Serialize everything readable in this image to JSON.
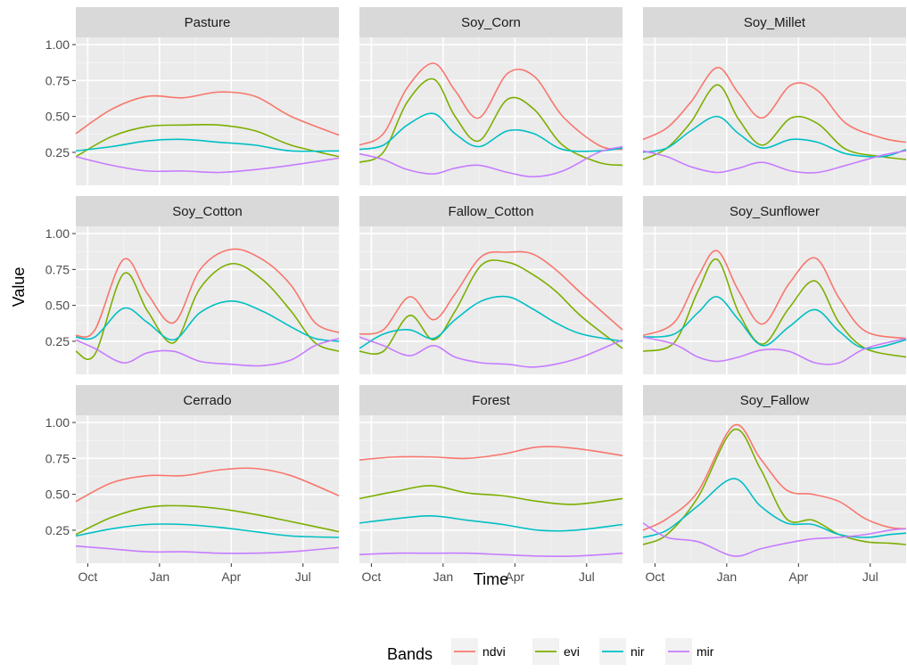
{
  "chart_data": {
    "type": "line",
    "xlabel": "Time",
    "ylabel": "Value",
    "legend": {
      "title": "Bands",
      "position": "bottom"
    },
    "x_ticks": [
      "Oct",
      "Jan",
      "Apr",
      "Jul"
    ],
    "x_tick_positions": [
      1,
      4,
      7,
      10
    ],
    "xlim": [
      0.5,
      11.5
    ],
    "y_ticks": [
      "0.25",
      "0.50",
      "0.75",
      "1.00"
    ],
    "y_tick_values": [
      0.25,
      0.5,
      0.75,
      1.0
    ],
    "ylim": [
      0.02,
      1.05
    ],
    "grid": true,
    "x_unit": "months since September",
    "series_styles": [
      {
        "name": "ndvi",
        "color": "#F8766D"
      },
      {
        "name": "evi",
        "color": "#7CAE00"
      },
      {
        "name": "nir",
        "color": "#00BFC4"
      },
      {
        "name": "mir",
        "color": "#C77CFF"
      }
    ],
    "facets": [
      {
        "title": "Pasture",
        "x": [
          0.5,
          2,
          3.5,
          5,
          6.5,
          8,
          9.5,
          11.5
        ],
        "series": [
          {
            "name": "ndvi",
            "values": [
              0.38,
              0.55,
              0.64,
              0.63,
              0.67,
              0.64,
              0.5,
              0.37
            ]
          },
          {
            "name": "evi",
            "values": [
              0.22,
              0.36,
              0.43,
              0.44,
              0.44,
              0.4,
              0.3,
              0.22
            ]
          },
          {
            "name": "nir",
            "values": [
              0.26,
              0.29,
              0.33,
              0.34,
              0.32,
              0.3,
              0.26,
              0.26
            ]
          },
          {
            "name": "mir",
            "values": [
              0.22,
              0.16,
              0.12,
              0.12,
              0.11,
              0.13,
              0.16,
              0.21
            ]
          }
        ]
      },
      {
        "title": "Soy_Corn",
        "x": [
          0.5,
          1.5,
          2.5,
          3.6,
          4.5,
          5.5,
          6.7,
          7.8,
          9,
          10.5,
          11.5
        ],
        "series": [
          {
            "name": "ndvi",
            "values": [
              0.3,
              0.38,
              0.7,
              0.87,
              0.68,
              0.49,
              0.8,
              0.78,
              0.5,
              0.3,
              0.27
            ]
          },
          {
            "name": "evi",
            "values": [
              0.18,
              0.25,
              0.6,
              0.76,
              0.5,
              0.33,
              0.62,
              0.55,
              0.3,
              0.18,
              0.16
            ]
          },
          {
            "name": "nir",
            "values": [
              0.27,
              0.3,
              0.44,
              0.52,
              0.38,
              0.29,
              0.4,
              0.38,
              0.27,
              0.26,
              0.28
            ]
          },
          {
            "name": "mir",
            "values": [
              0.24,
              0.2,
              0.13,
              0.1,
              0.14,
              0.16,
              0.11,
              0.08,
              0.12,
              0.25,
              0.29
            ]
          }
        ]
      },
      {
        "title": "Soy_Millet",
        "x": [
          0.5,
          1.5,
          2.5,
          3.6,
          4.5,
          5.5,
          6.7,
          7.8,
          9,
          10.5,
          11.5
        ],
        "series": [
          {
            "name": "ndvi",
            "values": [
              0.34,
              0.42,
              0.6,
              0.84,
              0.66,
              0.49,
              0.72,
              0.68,
              0.45,
              0.35,
              0.32
            ]
          },
          {
            "name": "evi",
            "values": [
              0.2,
              0.28,
              0.46,
              0.72,
              0.48,
              0.3,
              0.49,
              0.45,
              0.27,
              0.22,
              0.2
            ]
          },
          {
            "name": "nir",
            "values": [
              0.25,
              0.28,
              0.4,
              0.5,
              0.38,
              0.28,
              0.34,
              0.32,
              0.24,
              0.22,
              0.27
            ]
          },
          {
            "name": "mir",
            "values": [
              0.26,
              0.22,
              0.15,
              0.11,
              0.14,
              0.18,
              0.12,
              0.11,
              0.16,
              0.23,
              0.26
            ]
          }
        ]
      },
      {
        "title": "Soy_Cotton",
        "x": [
          0.5,
          1.3,
          2.5,
          3.5,
          4.6,
          5.7,
          7,
          8.3,
          9.5,
          10.5,
          11.5
        ],
        "series": [
          {
            "name": "ndvi",
            "values": [
              0.29,
              0.33,
              0.82,
              0.58,
              0.38,
              0.75,
              0.89,
              0.82,
              0.64,
              0.38,
              0.31
            ]
          },
          {
            "name": "evi",
            "values": [
              0.18,
              0.16,
              0.72,
              0.46,
              0.24,
              0.62,
              0.79,
              0.68,
              0.46,
              0.24,
              0.18
            ]
          },
          {
            "name": "nir",
            "values": [
              0.28,
              0.28,
              0.48,
              0.38,
              0.26,
              0.45,
              0.53,
              0.46,
              0.35,
              0.27,
              0.25
            ]
          },
          {
            "name": "mir",
            "values": [
              0.26,
              0.2,
              0.1,
              0.17,
              0.18,
              0.11,
              0.09,
              0.08,
              0.12,
              0.22,
              0.27
            ]
          }
        ]
      },
      {
        "title": "Fallow_Cotton",
        "x": [
          0.5,
          1.5,
          2.6,
          3.6,
          4.5,
          5.6,
          6.7,
          7.7,
          8.7,
          9.8,
          11.5
        ],
        "series": [
          {
            "name": "ndvi",
            "values": [
              0.3,
              0.33,
              0.56,
              0.4,
              0.58,
              0.84,
              0.87,
              0.86,
              0.75,
              0.58,
              0.33
            ]
          },
          {
            "name": "evi",
            "values": [
              0.18,
              0.18,
              0.43,
              0.26,
              0.46,
              0.78,
              0.8,
              0.72,
              0.6,
              0.42,
              0.2
            ]
          },
          {
            "name": "nir",
            "values": [
              0.2,
              0.3,
              0.33,
              0.27,
              0.4,
              0.53,
              0.56,
              0.48,
              0.38,
              0.3,
              0.25
            ]
          },
          {
            "name": "mir",
            "values": [
              0.28,
              0.22,
              0.15,
              0.22,
              0.14,
              0.1,
              0.09,
              0.07,
              0.09,
              0.14,
              0.26
            ]
          }
        ]
      },
      {
        "title": "Soy_Sunflower",
        "x": [
          0.5,
          1.8,
          2.8,
          3.6,
          4.5,
          5.5,
          6.6,
          7.7,
          8.7,
          9.8,
          11.5
        ],
        "series": [
          {
            "name": "ndvi",
            "values": [
              0.29,
              0.38,
              0.7,
              0.88,
              0.6,
              0.37,
              0.65,
              0.83,
              0.55,
              0.32,
              0.27
            ]
          },
          {
            "name": "evi",
            "values": [
              0.18,
              0.24,
              0.6,
              0.82,
              0.45,
              0.23,
              0.48,
              0.67,
              0.38,
              0.2,
              0.14
            ]
          },
          {
            "name": "nir",
            "values": [
              0.28,
              0.3,
              0.45,
              0.56,
              0.4,
              0.22,
              0.35,
              0.47,
              0.32,
              0.2,
              0.26
            ]
          },
          {
            "name": "mir",
            "values": [
              0.28,
              0.23,
              0.14,
              0.11,
              0.14,
              0.19,
              0.18,
              0.1,
              0.1,
              0.2,
              0.27
            ]
          }
        ]
      },
      {
        "title": "Cerrado",
        "x": [
          0.5,
          2,
          3.5,
          5,
          6.5,
          8,
          9.5,
          11.5
        ],
        "series": [
          {
            "name": "ndvi",
            "values": [
              0.45,
              0.58,
              0.63,
              0.63,
              0.67,
              0.68,
              0.63,
              0.49
            ]
          },
          {
            "name": "evi",
            "values": [
              0.22,
              0.34,
              0.41,
              0.42,
              0.4,
              0.36,
              0.31,
              0.24
            ]
          },
          {
            "name": "nir",
            "values": [
              0.21,
              0.26,
              0.29,
              0.29,
              0.27,
              0.24,
              0.21,
              0.2
            ]
          },
          {
            "name": "mir",
            "values": [
              0.14,
              0.12,
              0.1,
              0.1,
              0.09,
              0.09,
              0.1,
              0.13
            ]
          }
        ]
      },
      {
        "title": "Forest",
        "x": [
          0.5,
          2,
          3.5,
          5,
          6.5,
          8,
          9.5,
          11.5
        ],
        "series": [
          {
            "name": "ndvi",
            "values": [
              0.74,
              0.76,
              0.76,
              0.75,
              0.78,
              0.83,
              0.82,
              0.77
            ]
          },
          {
            "name": "evi",
            "values": [
              0.47,
              0.52,
              0.56,
              0.51,
              0.49,
              0.45,
              0.43,
              0.47
            ]
          },
          {
            "name": "nir",
            "values": [
              0.3,
              0.33,
              0.35,
              0.32,
              0.29,
              0.25,
              0.25,
              0.29
            ]
          },
          {
            "name": "mir",
            "values": [
              0.08,
              0.09,
              0.09,
              0.09,
              0.08,
              0.07,
              0.07,
              0.09
            ]
          }
        ]
      },
      {
        "title": "Soy_Fallow",
        "x": [
          0.5,
          1.5,
          2.8,
          4.3,
          5.4,
          6.5,
          7.6,
          8.7,
          9.8,
          10.8,
          11.5
        ],
        "series": [
          {
            "name": "ndvi",
            "values": [
              0.25,
              0.33,
              0.52,
              0.98,
              0.75,
              0.53,
              0.5,
              0.45,
              0.33,
              0.27,
              0.26
            ]
          },
          {
            "name": "evi",
            "values": [
              0.15,
              0.22,
              0.48,
              0.95,
              0.68,
              0.33,
              0.32,
              0.22,
              0.17,
              0.16,
              0.15
            ]
          },
          {
            "name": "nir",
            "values": [
              0.2,
              0.25,
              0.42,
              0.61,
              0.42,
              0.3,
              0.29,
              0.22,
              0.2,
              0.22,
              0.23
            ]
          },
          {
            "name": "mir",
            "values": [
              0.3,
              0.2,
              0.17,
              0.07,
              0.12,
              0.16,
              0.19,
              0.2,
              0.22,
              0.25,
              0.26
            ]
          }
        ]
      }
    ]
  }
}
